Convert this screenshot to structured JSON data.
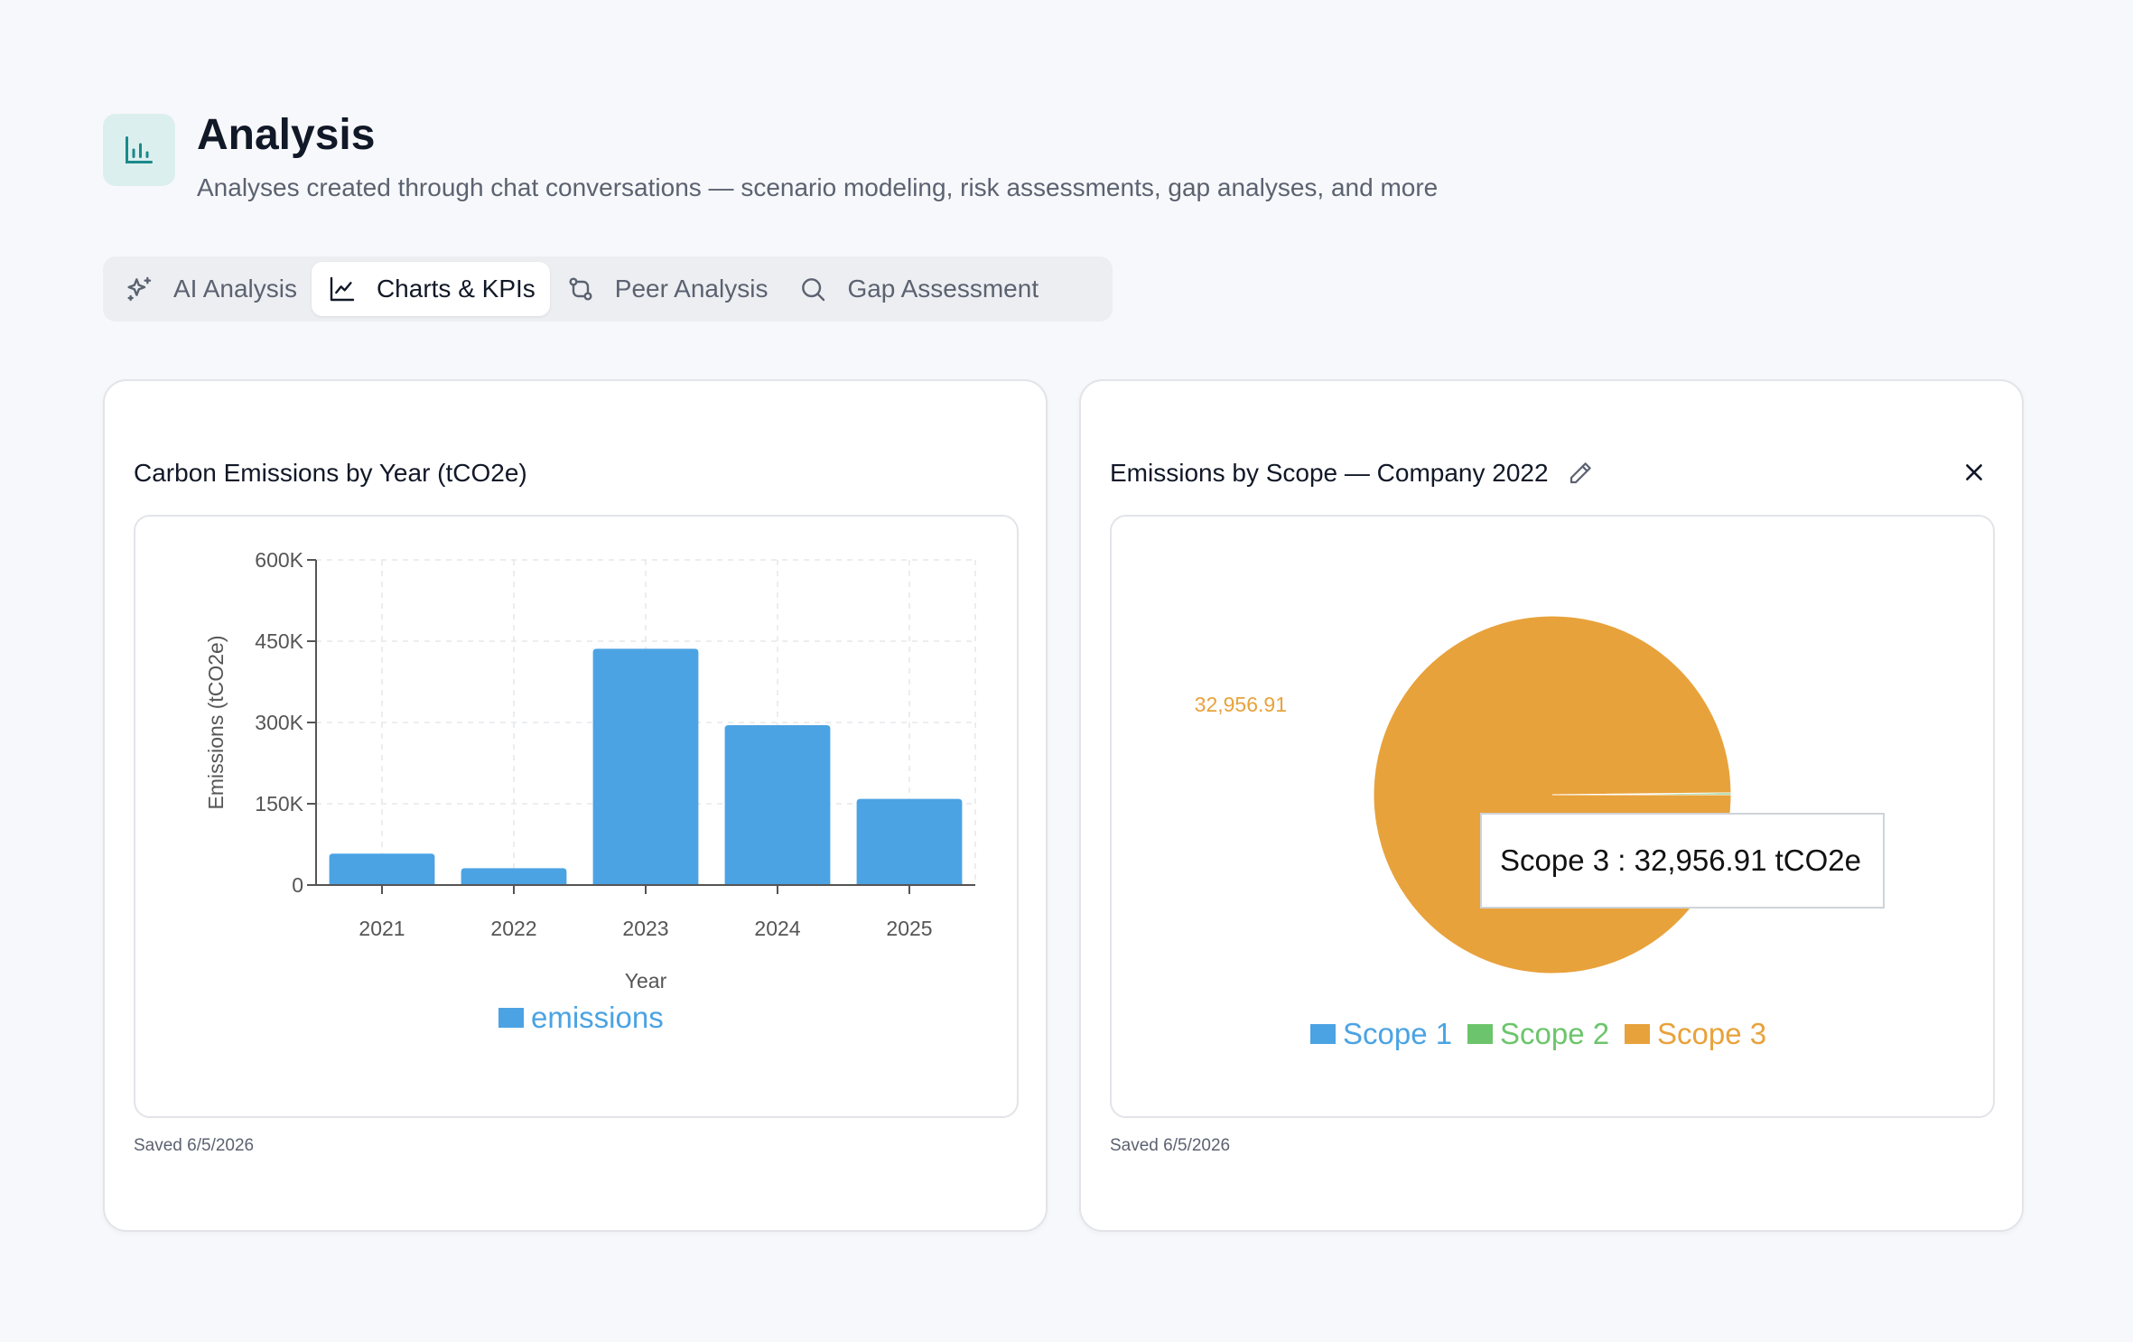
{
  "header": {
    "icon": "bar-chart-icon",
    "title": "Analysis",
    "subtitle": "Analyses created through chat conversations — scenario modeling, risk assessments, gap analyses, and more"
  },
  "tabs": [
    {
      "label": "AI Analysis",
      "icon": "sparkles-icon",
      "active": false
    },
    {
      "label": "Charts & KPIs",
      "icon": "line-chart-icon",
      "active": true
    },
    {
      "label": "Peer Analysis",
      "icon": "compare-icon",
      "active": false
    },
    {
      "label": "Gap Assessment",
      "icon": "search-icon",
      "active": false
    }
  ],
  "cards": [
    {
      "title": "Carbon Emissions by Year (tCO2e)",
      "saved": "Saved 6/5/2026"
    },
    {
      "title": "Emissions by Scope — Company 2022",
      "saved": "Saved 6/5/2026"
    }
  ],
  "chart_data": [
    {
      "type": "bar",
      "categories": [
        "2021",
        "2022",
        "2023",
        "2024",
        "2025"
      ],
      "series": [
        {
          "name": "emissions",
          "values": [
            58000,
            31000,
            436000,
            295000,
            159000
          ]
        }
      ],
      "xlabel": "Year",
      "ylabel": "Emissions (tCO2e)",
      "ylim": [
        0,
        600000
      ],
      "yticks": [
        0,
        150000,
        300000,
        450000,
        600000
      ],
      "ytick_labels": [
        "0",
        "150K",
        "300K",
        "450K",
        "600K"
      ],
      "grid": true,
      "legend": "bottom",
      "color": "#4ba3e3"
    },
    {
      "type": "pie",
      "labels": [
        "Scope 1",
        "Scope 2",
        "Scope 3"
      ],
      "values": [
        0.5,
        55,
        32956.91
      ],
      "colors": [
        "#4ba3e3",
        "#6cc56c",
        "#e8a23b"
      ],
      "data_label": "32,956.91",
      "legend": "bottom",
      "tooltip": {
        "label": "Scope 3",
        "separator": " : ",
        "value": "32,956.91 tCO2e"
      }
    }
  ]
}
